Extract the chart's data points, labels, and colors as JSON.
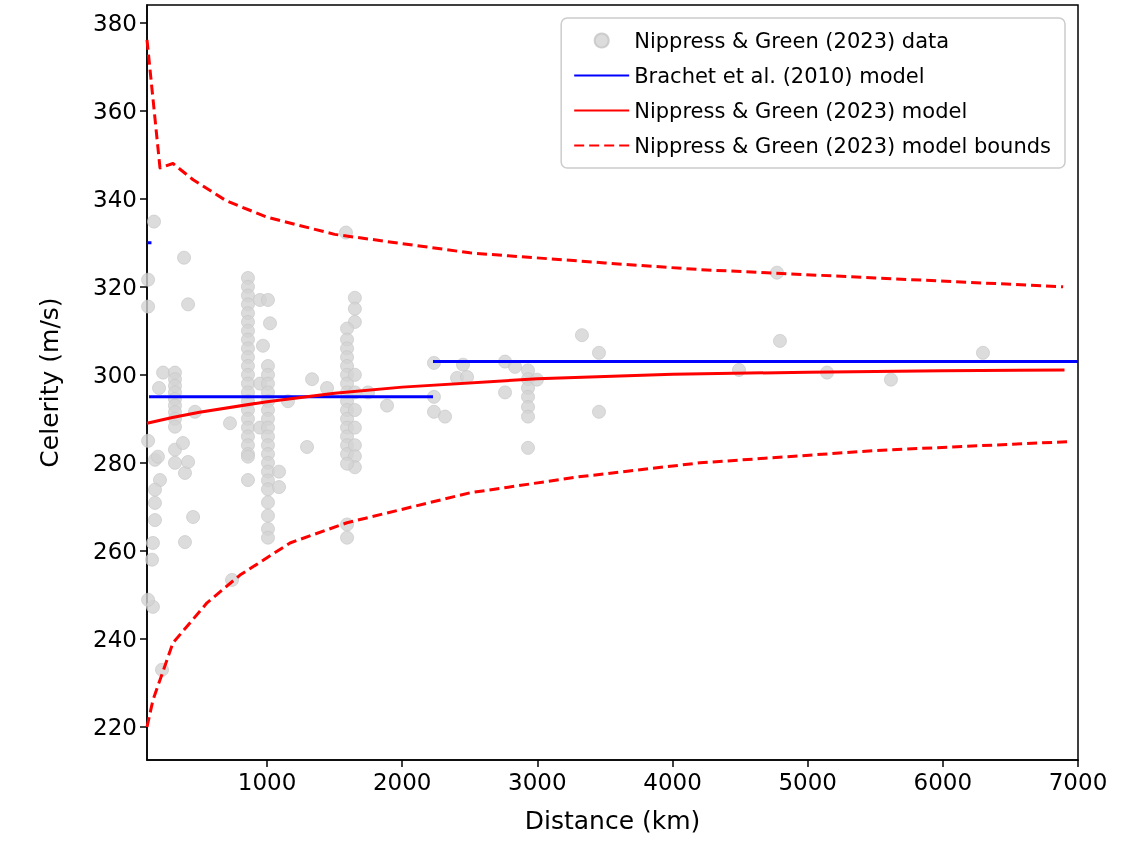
{
  "chart_data": {
    "type": "scatter",
    "xlabel": "Distance (km)",
    "ylabel": "Celerity (m/s)",
    "xlim": [
      112,
      7000
    ],
    "xticks": [
      1000,
      2000,
      3000,
      4000,
      5000,
      6000,
      7000
    ],
    "ylim": [
      212.5,
      384
    ],
    "yticks": [
      220,
      240,
      260,
      280,
      300,
      320,
      340,
      360,
      380
    ],
    "grid": false,
    "legend": "top right",
    "series": [
      {
        "name": "Nippress & Green (2023) data",
        "color": "#d3d3d3",
        "marker": "circle",
        "x": [
          164,
          120,
          120,
          171,
          193,
          208,
          171,
          171,
          171,
          156,
          149,
          156,
          120,
          120,
          223,
          201,
          231,
          319,
          319,
          319,
          319,
          319,
          319,
          319,
          319,
          319,
          319,
          319,
          378,
          393,
          416,
          467,
          393,
          453,
          386,
          416,
          859,
          859,
          859,
          859,
          859,
          859,
          859,
          859,
          859,
          859,
          859,
          859,
          859,
          859,
          859,
          859,
          859,
          859,
          859,
          859,
          859,
          859,
          859,
          948,
          948,
          948,
          1007,
          1007,
          1007,
          1007,
          1007,
          1007,
          1007,
          1007,
          1007,
          1007,
          1007,
          1007,
          1007,
          1007,
          1007,
          1007,
          1007,
          1007,
          1007,
          1007,
          1022,
          970,
          1089,
          1089,
          1650,
          1650,
          1650,
          1592,
          1592,
          1592,
          1592,
          1592,
          1592,
          1592,
          1592,
          1592,
          1592,
          1592,
          1592,
          1592,
          1592,
          1592,
          1650,
          1650,
          1650,
          1650,
          1650,
          1650,
          1650,
          1592,
          1592,
          1592,
          1584,
          726,
          741,
          1155,
          1296,
          1333,
          1444,
          1747,
          1888,
          2235,
          2235,
          2235,
          2317,
          2450,
          2406,
          2480,
          2761,
          2835,
          2761,
          2931,
          2931,
          2931,
          2931,
          2931,
          2931,
          2931,
          2997,
          3330,
          3456,
          3456,
          4773,
          4795,
          4492,
          5143,
          5616,
          6297
        ],
        "values": [
          334.8,
          321.6,
          315.5,
          280.7,
          281.4,
          276.1,
          273.9,
          270.9,
          267,
          261.8,
          258,
          247.3,
          248.9,
          285,
          233,
          297,
          300.5,
          300.5,
          299,
          297.5,
          296,
          294.5,
          293,
          291.5,
          290,
          288.2,
          283,
          280,
          284.5,
          277.7,
          280.2,
          291.6,
          262,
          267.7,
          326.6,
          316,
          322,
          320,
          318,
          316,
          314,
          312,
          310,
          308,
          306,
          304,
          302,
          300,
          298,
          296,
          294,
          292,
          290,
          288,
          286,
          284,
          282,
          281.4,
          276.1,
          317,
          298,
          288,
          302,
          300,
          298,
          296,
          294,
          292,
          290,
          288,
          286,
          284,
          282,
          280,
          278,
          276,
          274,
          271,
          268,
          265,
          263,
          317,
          311.7,
          306.6,
          278,
          274.5,
          317.5,
          315,
          312,
          310.5,
          308,
          306,
          304,
          302,
          300,
          298,
          296,
          294,
          292,
          290,
          288,
          286,
          284,
          282,
          300,
          296,
          292,
          288,
          284,
          281.5,
          279,
          279.8,
          266,
          263,
          332.3,
          289,
          253.4,
          294,
          283.6,
          299,
          297,
          296,
          293,
          302.7,
          295,
          291.6,
          290.5,
          302.3,
          299.3,
          299.5,
          303,
          301.8,
          296,
          301,
          299,
          297,
          295,
          292.7,
          290.5,
          283.4,
          298.9,
          309,
          305,
          291.6,
          323.2,
          307.7,
          301.1,
          300.5,
          298.9,
          305
        ]
      },
      {
        "name": "Brachet et al. (2010) model",
        "type": "line",
        "color": "#0000ff",
        "marker": "none",
        "line_style": "solid",
        "x": [
          127,
          2228
        ],
        "values": [
          295,
          295
        ]
      },
      {
        "type": "line",
        "color": "#0000ff",
        "marker": "none",
        "line_style": "solid",
        "x": [
          2228,
          7000
        ],
        "values": [
          303,
          303
        ]
      },
      {
        "type": "line",
        "color": "#0000ff",
        "marker": "none",
        "line_style": "solid",
        "x": [
          112,
          145
        ],
        "values": [
          330,
          330
        ]
      },
      {
        "name": "Nippress & Green (2023) model",
        "type": "line",
        "color": "#ff0000",
        "marker": "none",
        "line_style": "solid",
        "x": [
          112,
          300,
          500,
          1000,
          1500,
          2000,
          3000,
          4000,
          5000,
          6000,
          6900
        ],
        "values": [
          289.0,
          290.3,
          291.5,
          293.9,
          295.8,
          297.2,
          299.1,
          300.1,
          300.6,
          300.9,
          301.1
        ]
      },
      {
        "name": "Nippress & Green (2023) model bounds",
        "type": "line",
        "color": "#ff0000",
        "marker": "none",
        "line_style": "dashed",
        "x": [
          112,
          208,
          304,
          453,
          700,
          1000,
          1500,
          2500,
          3500,
          4200,
          5500,
          6890
        ],
        "values": [
          376.1,
          347.0,
          348.0,
          344.3,
          339.5,
          335.8,
          331.9,
          327.7,
          325.4,
          323.9,
          322.0,
          320.0
        ]
      },
      {
        "type": "line",
        "color": "#ff0000",
        "marker": "none",
        "line_style": "dashed",
        "x": [
          112,
          156,
          304,
          556,
          800,
          1170,
          1592,
          2502,
          3300,
          4203,
          5500,
          6919
        ],
        "values": [
          220,
          226.1,
          239.1,
          248.2,
          254.5,
          261.8,
          266.4,
          273.2,
          276.8,
          280,
          282.8,
          284.8
        ]
      }
    ]
  }
}
